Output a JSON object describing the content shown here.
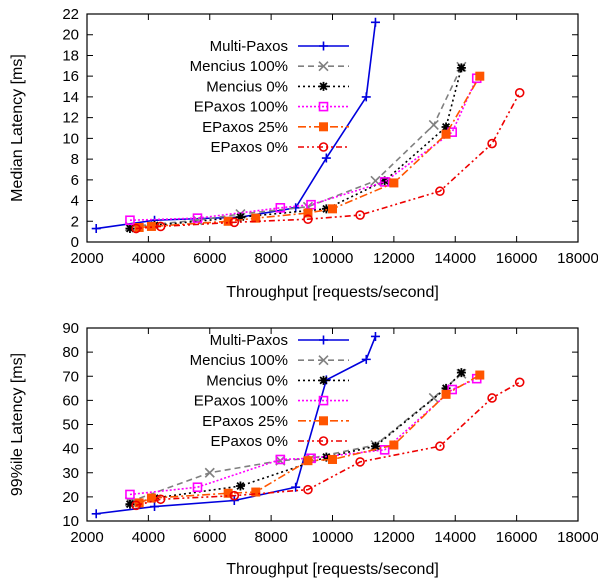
{
  "chart_data": [
    {
      "type": "line",
      "xlabel": "Throughput [requests/second]",
      "ylabel": "Median Latency [ms]",
      "xlim": [
        2000,
        18000
      ],
      "ylim": [
        0,
        22
      ],
      "xticks": [
        2000,
        4000,
        6000,
        8000,
        10000,
        12000,
        14000,
        16000,
        18000
      ],
      "yticks": [
        0,
        2,
        4,
        6,
        8,
        10,
        12,
        14,
        16,
        18,
        20,
        22
      ],
      "grid": false,
      "legend_position": "top-left",
      "series": [
        {
          "name": "Multi-Paxos",
          "color": "#0000dd",
          "dash": "",
          "marker": "plus",
          "x": [
            2300,
            4200,
            7000,
            8800,
            9800,
            11100,
            11400
          ],
          "y": [
            1.3,
            2.1,
            2.4,
            3.3,
            8.1,
            14.0,
            21.2
          ]
        },
        {
          "name": "Mencius 100%",
          "color": "#808080",
          "dash": "6,4",
          "marker": "x",
          "x": [
            3400,
            5600,
            7000,
            9200,
            11400,
            13300,
            14200
          ],
          "y": [
            1.5,
            2.1,
            2.7,
            3.4,
            5.9,
            11.3,
            16.9
          ]
        },
        {
          "name": "Mencius 0%",
          "color": "#000000",
          "dash": "2,3",
          "marker": "star",
          "x": [
            3400,
            4200,
            7000,
            9800,
            11700,
            13700,
            14200
          ],
          "y": [
            1.3,
            1.6,
            2.4,
            3.2,
            5.9,
            11.1,
            16.8
          ]
        },
        {
          "name": "EPaxos 100%",
          "color": "#ff00ff",
          "dash": "2,2",
          "marker": "square-open",
          "x": [
            3400,
            5600,
            8300,
            9300,
            11700,
            13900,
            14700
          ],
          "y": [
            2.1,
            2.3,
            3.3,
            3.6,
            5.8,
            10.6,
            15.8
          ]
        },
        {
          "name": "EPaxos 25%",
          "color": "#ff5500",
          "dash": "8,3,2,3",
          "marker": "square-filled",
          "x": [
            3700,
            4100,
            6600,
            7500,
            9200,
            10000,
            12000,
            13700,
            14800
          ],
          "y": [
            1.4,
            1.5,
            2.0,
            2.3,
            2.8,
            3.2,
            5.7,
            10.4,
            16.0
          ]
        },
        {
          "name": "EPaxos 0%",
          "color": "#ee0000",
          "dash": "6,3,2,3,2,3",
          "marker": "circle-open",
          "x": [
            3600,
            4400,
            6800,
            9200,
            10900,
            13500,
            15200,
            16100
          ],
          "y": [
            1.3,
            1.5,
            1.9,
            2.2,
            2.6,
            4.9,
            9.5,
            14.4
          ]
        }
      ]
    },
    {
      "type": "line",
      "xlabel": "Throughput [requests/second]",
      "ylabel": "99%ile Latency [ms]",
      "xlim": [
        2000,
        18000
      ],
      "ylim": [
        10,
        90
      ],
      "xticks": [
        2000,
        4000,
        6000,
        8000,
        10000,
        12000,
        14000,
        16000,
        18000
      ],
      "yticks": [
        10,
        20,
        30,
        40,
        50,
        60,
        70,
        80,
        90
      ],
      "grid": false,
      "legend_position": "top-left",
      "series": [
        {
          "name": "Multi-Paxos",
          "color": "#0000dd",
          "dash": "",
          "marker": "plus",
          "x": [
            2300,
            4200,
            6800,
            8800,
            9800,
            11100,
            11400
          ],
          "y": [
            13,
            16,
            18.5,
            24,
            68.5,
            77,
            86.5
          ]
        },
        {
          "name": "Mencius 100%",
          "color": "#808080",
          "dash": "6,4",
          "marker": "x",
          "x": [
            3400,
            6000,
            8300,
            9300,
            11400,
            13300,
            14200
          ],
          "y": [
            18,
            30,
            35,
            36,
            41.5,
            61,
            71
          ]
        },
        {
          "name": "Mencius 0%",
          "color": "#000000",
          "dash": "2,3",
          "marker": "star",
          "x": [
            3400,
            4200,
            7000,
            9800,
            11400,
            13700,
            14200
          ],
          "y": [
            17,
            19.5,
            24.5,
            36.5,
            41,
            65,
            71.5
          ]
        },
        {
          "name": "EPaxos 100%",
          "color": "#ff00ff",
          "dash": "2,2",
          "marker": "square-open",
          "x": [
            3400,
            5600,
            8300,
            9300,
            11700,
            13900,
            14700
          ],
          "y": [
            21,
            24,
            35.5,
            36,
            39.5,
            64.5,
            69
          ]
        },
        {
          "name": "EPaxos 25%",
          "color": "#ff5500",
          "dash": "8,3,2,3",
          "marker": "square-filled",
          "x": [
            3700,
            4100,
            6600,
            7500,
            9200,
            10000,
            12000,
            13700,
            14800
          ],
          "y": [
            17.5,
            19.5,
            21.5,
            22,
            35,
            35.5,
            41.5,
            62.5,
            70.5
          ]
        },
        {
          "name": "EPaxos 0%",
          "color": "#ee0000",
          "dash": "6,3,2,3,2,3",
          "marker": "circle-open",
          "x": [
            3600,
            4400,
            6800,
            9200,
            10900,
            13500,
            15200,
            16100
          ],
          "y": [
            16.5,
            19,
            20.5,
            23,
            34.5,
            41,
            61,
            67.5
          ]
        }
      ]
    }
  ]
}
